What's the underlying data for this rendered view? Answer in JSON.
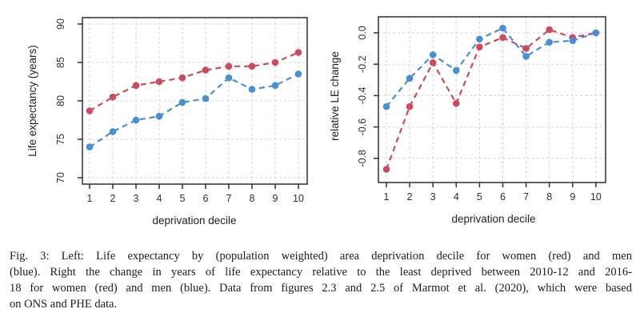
{
  "figure": {
    "caption_lines": [
      "Fig. 3: Left: Life expectancy by (population weighted) area deprivation decile for women (red) and men",
      "(blue). Right the change in years of life expectancy relative to the least deprived between 2010-12 and 2016-",
      "18 for women (red) and men (blue). Data from figures 2.3 and 2.5 of Marmot et al. (2020), which were based",
      "on ONS and PHE data."
    ]
  },
  "colors": {
    "women": "#c94c5f",
    "men": "#4b8fd2",
    "grid": "#d3d3d3",
    "axis": "#3c3c3c",
    "tick_text": "#303030"
  },
  "chart_data": [
    {
      "type": "line",
      "title": "",
      "xlabel": "deprivation decile",
      "ylabel": "Life expectancy (years)",
      "x": [
        1,
        2,
        3,
        4,
        5,
        6,
        7,
        8,
        9,
        10
      ],
      "yticks": [
        70,
        75,
        80,
        85,
        90
      ],
      "ytick_labels": [
        "70",
        "75",
        "80",
        "85",
        "90"
      ],
      "ylim": [
        69,
        91
      ],
      "grid": true,
      "legend": false,
      "series": [
        {
          "key": "women",
          "name": "women (red)",
          "color": "#c94c5f",
          "values": [
            78.7,
            80.5,
            82.0,
            82.5,
            83.0,
            84.0,
            84.5,
            84.5,
            85.0,
            86.3
          ]
        },
        {
          "key": "men",
          "name": "men (blue)",
          "color": "#4b8fd2",
          "values": [
            74.0,
            76.0,
            77.5,
            78.0,
            79.8,
            80.3,
            83.0,
            81.5,
            82.0,
            83.5
          ]
        }
      ]
    },
    {
      "type": "line",
      "title": "",
      "xlabel": "deprivation decile",
      "ylabel": "relative LE change",
      "x": [
        1,
        2,
        3,
        4,
        5,
        6,
        7,
        8,
        9,
        10
      ],
      "yticks": [
        0.0,
        -0.2,
        -0.4,
        -0.6,
        -0.8
      ],
      "ytick_labels": [
        "0.0",
        "-0.2",
        "-0.4",
        "-0.6",
        "-0.8"
      ],
      "ylim": [
        -0.95,
        0.08
      ],
      "grid": true,
      "legend": false,
      "series": [
        {
          "key": "women",
          "name": "women (red)",
          "color": "#c94c5f",
          "values": [
            -0.87,
            -0.47,
            -0.19,
            -0.45,
            -0.09,
            -0.03,
            -0.1,
            0.02,
            -0.03,
            0.0
          ]
        },
        {
          "key": "men",
          "name": "men (blue)",
          "color": "#4b8fd2",
          "values": [
            -0.47,
            -0.29,
            -0.14,
            -0.24,
            -0.04,
            0.03,
            -0.15,
            -0.06,
            -0.05,
            0.0
          ]
        }
      ]
    }
  ]
}
